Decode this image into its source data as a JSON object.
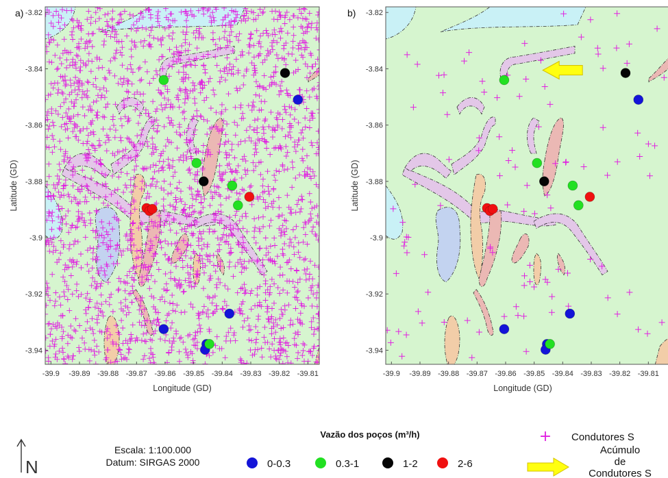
{
  "chart_data": [
    {
      "type": "scatter",
      "panel_label": "a)",
      "xlabel": "Longitude (GD)",
      "ylabel": "Latitude (GD)",
      "xlim": [
        -39.902,
        -39.806
      ],
      "ylim": [
        -3.945,
        -3.818
      ],
      "x_ticks": [
        "-39.9",
        "-39.89",
        "-39.88",
        "-39.87",
        "-39.86",
        "-39.85",
        "-39.84",
        "-39.83",
        "-39.82",
        "-39.81"
      ],
      "x_tick_values": [
        -39.9,
        -39.89,
        -39.88,
        -39.87,
        -39.86,
        -39.85,
        -39.84,
        -39.83,
        -39.82,
        -39.81
      ],
      "y_ticks": [
        "-3.82",
        "-3.84",
        "-3.86",
        "-3.88",
        "-3.9",
        "-3.92",
        "-3.94"
      ],
      "y_tick_values": [
        -3.82,
        -3.84,
        -3.86,
        -3.88,
        -3.9,
        -3.92,
        -3.94
      ],
      "conductor_density": "dense"
    },
    {
      "type": "scatter",
      "panel_label": "b)",
      "xlabel": "Longitude (GD)",
      "ylabel": "Latitude (GD)",
      "xlim": [
        -39.902,
        -39.806
      ],
      "ylim": [
        -3.945,
        -3.818
      ],
      "x_ticks": [
        "-39.9",
        "-39.89",
        "-39.88",
        "-39.87",
        "-39.86",
        "-39.85",
        "-39.84",
        "-39.83",
        "-39.82",
        "-39.81"
      ],
      "x_tick_values": [
        -39.9,
        -39.89,
        -39.88,
        -39.87,
        -39.86,
        -39.85,
        -39.84,
        -39.83,
        -39.82,
        -39.81
      ],
      "y_ticks": [
        "-3.82",
        "-3.84",
        "-3.86",
        "-3.88",
        "-3.9",
        "-3.92",
        "-3.94"
      ],
      "y_tick_values": [
        -3.82,
        -3.84,
        -3.86,
        -3.88,
        -3.9,
        -3.92,
        -3.94
      ],
      "conductor_density": "sparse",
      "arrow_points_to": {
        "lon": -39.847,
        "lat": -3.8405
      }
    }
  ],
  "wells": [
    {
      "lon": -39.818,
      "lat": -3.8415,
      "class": "1-2"
    },
    {
      "lon": -39.8135,
      "lat": -3.851,
      "class": "0-0.3"
    },
    {
      "lon": -39.8605,
      "lat": -3.844,
      "class": "0.3-1"
    },
    {
      "lon": -39.849,
      "lat": -3.8735,
      "class": "0.3-1"
    },
    {
      "lon": -39.8465,
      "lat": -3.88,
      "class": "1-2"
    },
    {
      "lon": -39.8365,
      "lat": -3.8815,
      "class": "0.3-1"
    },
    {
      "lon": -39.8345,
      "lat": -3.8885,
      "class": "0.3-1"
    },
    {
      "lon": -39.8305,
      "lat": -3.8855,
      "class": "2-6"
    },
    {
      "lon": -39.8665,
      "lat": -3.8895,
      "class": "2-6"
    },
    {
      "lon": -39.8655,
      "lat": -3.8905,
      "class": "2-6"
    },
    {
      "lon": -39.8645,
      "lat": -3.8898,
      "class": "2-6"
    },
    {
      "lon": -39.8375,
      "lat": -3.927,
      "class": "0-0.3"
    },
    {
      "lon": -39.8605,
      "lat": -3.9325,
      "class": "0-0.3"
    },
    {
      "lon": -39.8455,
      "lat": -3.9378,
      "class": "0-0.3"
    },
    {
      "lon": -39.846,
      "lat": -3.9398,
      "class": "0-0.3"
    },
    {
      "lon": -39.8445,
      "lat": -3.9378,
      "class": "0.3-1"
    }
  ],
  "legend": {
    "title": "Vazão dos poços (m³/h)",
    "classes": [
      {
        "label": "0-0.3",
        "color": "#1414d8"
      },
      {
        "label": "0.3-1",
        "color": "#22e022"
      },
      {
        "label": "1-2",
        "color": "#050505"
      },
      {
        "label": "2-6",
        "color": "#f01010"
      }
    ],
    "conductors_label": "Condutores S",
    "arrow_label_lines": [
      "Acúmulo",
      "de",
      "Condutores S"
    ]
  },
  "scale": {
    "line1": "Escala: 1:100.000",
    "line2": "Datum: SIRGAS 2000"
  },
  "north_label": "N",
  "colors": {
    "map_background": "#d6f5cf",
    "water": "#c9f1f6",
    "lake": "#c3d3f0",
    "drainage_lilac": "#e3c7e8",
    "outcrop_pink": "#ebb8b4",
    "outcrop_peach": "#f2cda8",
    "conductor": "#e020e0",
    "arrow": "#ffff10"
  }
}
